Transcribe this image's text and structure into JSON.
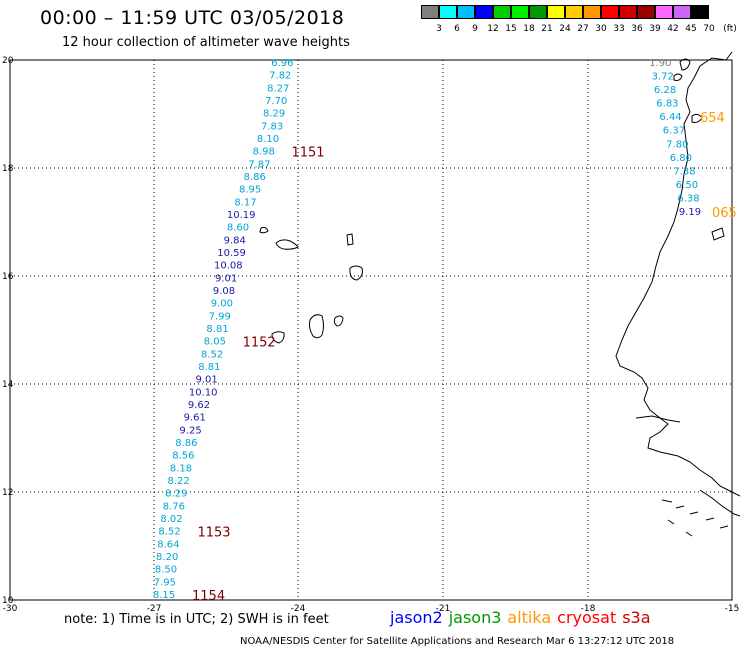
{
  "header": {
    "title": "00:00 – 11:59 UTC 03/05/2018",
    "subtitle": "12 hour collection of altimeter wave heights"
  },
  "colorbar": {
    "unit": "(ft)",
    "labels": [
      "3",
      "6",
      "9",
      "12",
      "15",
      "18",
      "21",
      "24",
      "27",
      "30",
      "33",
      "36",
      "39",
      "42",
      "45",
      "70"
    ],
    "colors": [
      "#7f7f7f",
      "#00ffff",
      "#00bfff",
      "#0000ff",
      "#00cc00",
      "#00ee00",
      "#009900",
      "#ffff00",
      "#ffcc00",
      "#ff9900",
      "#ff0000",
      "#cc0000",
      "#990000",
      "#ff66ff",
      "#cc66ff",
      "#000000"
    ]
  },
  "axes": {
    "x_ticks": [
      "-30",
      "-27",
      "-24",
      "-21",
      "-18",
      "-15"
    ],
    "y_ticks": [
      "20",
      "18",
      "16",
      "14",
      "12",
      "10"
    ]
  },
  "passes": {
    "main_track": {
      "labels": [
        {
          "text": "6.96",
          "c": "c"
        },
        {
          "text": "7.82",
          "c": "c"
        },
        {
          "text": "8.27",
          "c": "c"
        },
        {
          "text": "7.70",
          "c": "c"
        },
        {
          "text": "8.29",
          "c": "c"
        },
        {
          "text": "7.83",
          "c": "c"
        },
        {
          "text": "8.10",
          "c": "c"
        },
        {
          "text": "8.98",
          "c": "c"
        },
        {
          "text": "7.87",
          "c": "c"
        },
        {
          "text": "8.86",
          "c": "c"
        },
        {
          "text": "8.95",
          "c": "c"
        },
        {
          "text": "8.17",
          "c": "c"
        },
        {
          "text": "10.19",
          "c": "b"
        },
        {
          "text": "8.60",
          "c": "c"
        },
        {
          "text": "9.84",
          "c": "b"
        },
        {
          "text": "10.59",
          "c": "b"
        },
        {
          "text": "10.08",
          "c": "b"
        },
        {
          "text": "9.01",
          "c": "b"
        },
        {
          "text": "9.08",
          "c": "b"
        },
        {
          "text": "9.00",
          "c": "c"
        },
        {
          "text": "7.99",
          "c": "c"
        },
        {
          "text": "8.81",
          "c": "c"
        },
        {
          "text": "8.05",
          "c": "c"
        },
        {
          "text": "8.52",
          "c": "c"
        },
        {
          "text": "8.81",
          "c": "c"
        },
        {
          "text": "9.01",
          "c": "b"
        },
        {
          "text": "10.10",
          "c": "b"
        },
        {
          "text": "9.62",
          "c": "b"
        },
        {
          "text": "9.61",
          "c": "b"
        },
        {
          "text": "9.25",
          "c": "b"
        },
        {
          "text": "8.86",
          "c": "c"
        },
        {
          "text": "8.56",
          "c": "c"
        },
        {
          "text": "8.18",
          "c": "c"
        },
        {
          "text": "8.22",
          "c": "c"
        },
        {
          "text": "8.29",
          "c": "c"
        },
        {
          "text": "8.76",
          "c": "c"
        },
        {
          "text": "8.02",
          "c": "c"
        },
        {
          "text": "8.52",
          "c": "c"
        },
        {
          "text": "8.64",
          "c": "c"
        },
        {
          "text": "8.20",
          "c": "c"
        },
        {
          "text": "8.50",
          "c": "c"
        },
        {
          "text": "7.95",
          "c": "c"
        },
        {
          "text": "8.15",
          "c": "c"
        }
      ],
      "times": [
        "1151",
        "1152",
        "1153",
        "1154"
      ]
    },
    "east_track": {
      "labels": [
        {
          "text": "1.90",
          "c": "g"
        },
        {
          "text": "3.72",
          "c": "c"
        },
        {
          "text": "6.28",
          "c": "c"
        },
        {
          "text": "6.83",
          "c": "c"
        },
        {
          "text": "6.44",
          "c": "c"
        },
        {
          "text": "6.37",
          "c": "c"
        },
        {
          "text": "7.80",
          "c": "c"
        },
        {
          "text": "6.80",
          "c": "c"
        },
        {
          "text": "7.38",
          "c": "c"
        },
        {
          "text": "6.50",
          "c": "c"
        },
        {
          "text": "6.38",
          "c": "c"
        },
        {
          "text": "9.19",
          "c": "b"
        }
      ],
      "times": [
        "654",
        "065"
      ]
    }
  },
  "footer": {
    "note": "note: 1) Time is in UTC; 2) SWH is in feet",
    "legend": [
      {
        "name": "jason2",
        "color": "#0000ff"
      },
      {
        "name": "jason3",
        "color": "#009900"
      },
      {
        "name": "altika",
        "color": "#ff9900"
      },
      {
        "name": "cryosat",
        "color": "#ff0000"
      },
      {
        "name": "s3a",
        "color": "#cc0000"
      }
    ],
    "credit": "NOAA/NESDIS Center for Satellite Applications and Research    Mar  6 13:27:12 UTC 2018"
  }
}
